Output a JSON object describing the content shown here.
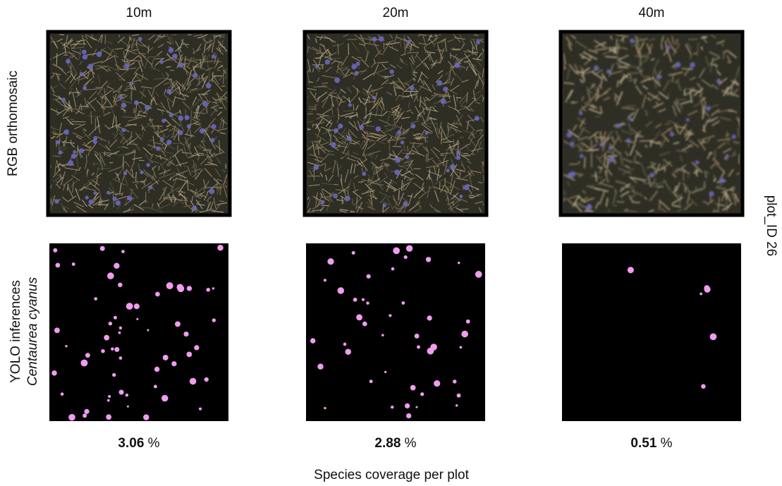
{
  "columns": [
    "10m",
    "20m",
    "40m"
  ],
  "rows": {
    "rgb": "RGB orthomosaic",
    "yolo": "YOLO inferences",
    "species": "Centaurea cyanus"
  },
  "side_label": "plot_ID 26",
  "coverage": [
    {
      "value": "3.06",
      "unit": "%"
    },
    {
      "value": "2.88",
      "unit": "%"
    },
    {
      "value": "0.51",
      "unit": "%"
    }
  ],
  "x_label": "Species coverage per plot"
}
